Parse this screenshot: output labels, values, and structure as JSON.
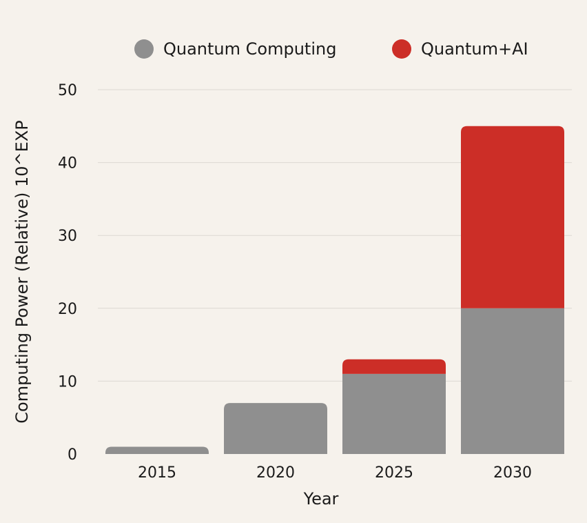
{
  "chart_data": {
    "type": "bar",
    "stacked": true,
    "categories": [
      "2015",
      "2020",
      "2025",
      "2030"
    ],
    "series": [
      {
        "name": "Quantum Computing",
        "values": [
          1,
          7,
          11,
          20
        ],
        "color": "#8f8f8f"
      },
      {
        "name": "Quantum+AI",
        "values": [
          0,
          0,
          2,
          25
        ],
        "color": "#cc2e27"
      }
    ],
    "title": "",
    "xlabel": "Year",
    "ylabel": "Computing Power (Relative) 10^EXP",
    "ylim": [
      0,
      50
    ],
    "yticks": [
      0,
      10,
      20,
      30,
      40,
      50
    ],
    "grid": true,
    "legend_position": "top"
  },
  "colors": {
    "background": "#f6f2ec",
    "grid": "#dcd8d2"
  }
}
